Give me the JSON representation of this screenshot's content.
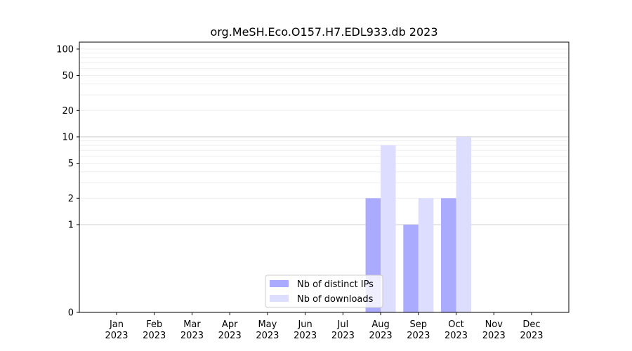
{
  "chart_data": {
    "type": "bar",
    "title": "org.MeSH.Eco.O157.H7.EDL933.db 2023",
    "xlabel": "",
    "ylabel": "",
    "y_scale": "symlog",
    "ylim": [
      0,
      120
    ],
    "y_ticks": [
      0,
      1,
      2,
      5,
      10,
      20,
      50,
      100
    ],
    "y_tick_labels": [
      "0",
      "1",
      "2",
      "5",
      "10",
      "20",
      "50",
      "100"
    ],
    "categories": [
      "Jan\n2023",
      "Feb\n2023",
      "Mar\n2023",
      "Apr\n2023",
      "May\n2023",
      "Jun\n2023",
      "Jul\n2023",
      "Aug\n2023",
      "Sep\n2023",
      "Oct\n2023",
      "Nov\n2023",
      "Dec\n2023"
    ],
    "category_lines": [
      [
        "Jan",
        "2023"
      ],
      [
        "Feb",
        "2023"
      ],
      [
        "Mar",
        "2023"
      ],
      [
        "Apr",
        "2023"
      ],
      [
        "May",
        "2023"
      ],
      [
        "Jun",
        "2023"
      ],
      [
        "Jul",
        "2023"
      ],
      [
        "Aug",
        "2023"
      ],
      [
        "Sep",
        "2023"
      ],
      [
        "Oct",
        "2023"
      ],
      [
        "Nov",
        "2023"
      ],
      [
        "Dec",
        "2023"
      ]
    ],
    "series": [
      {
        "name": "Nb of distinct IPs",
        "color": "#aaaaff",
        "values": [
          0,
          0,
          0,
          0,
          0,
          0,
          0,
          2,
          1,
          2,
          0,
          0
        ]
      },
      {
        "name": "Nb of downloads",
        "color": "#ddddff",
        "values": [
          0,
          0,
          0,
          0,
          0,
          0,
          0,
          8,
          2,
          10,
          0,
          0
        ]
      }
    ],
    "legend_position": "bottom-center",
    "grid": "horizontal"
  }
}
